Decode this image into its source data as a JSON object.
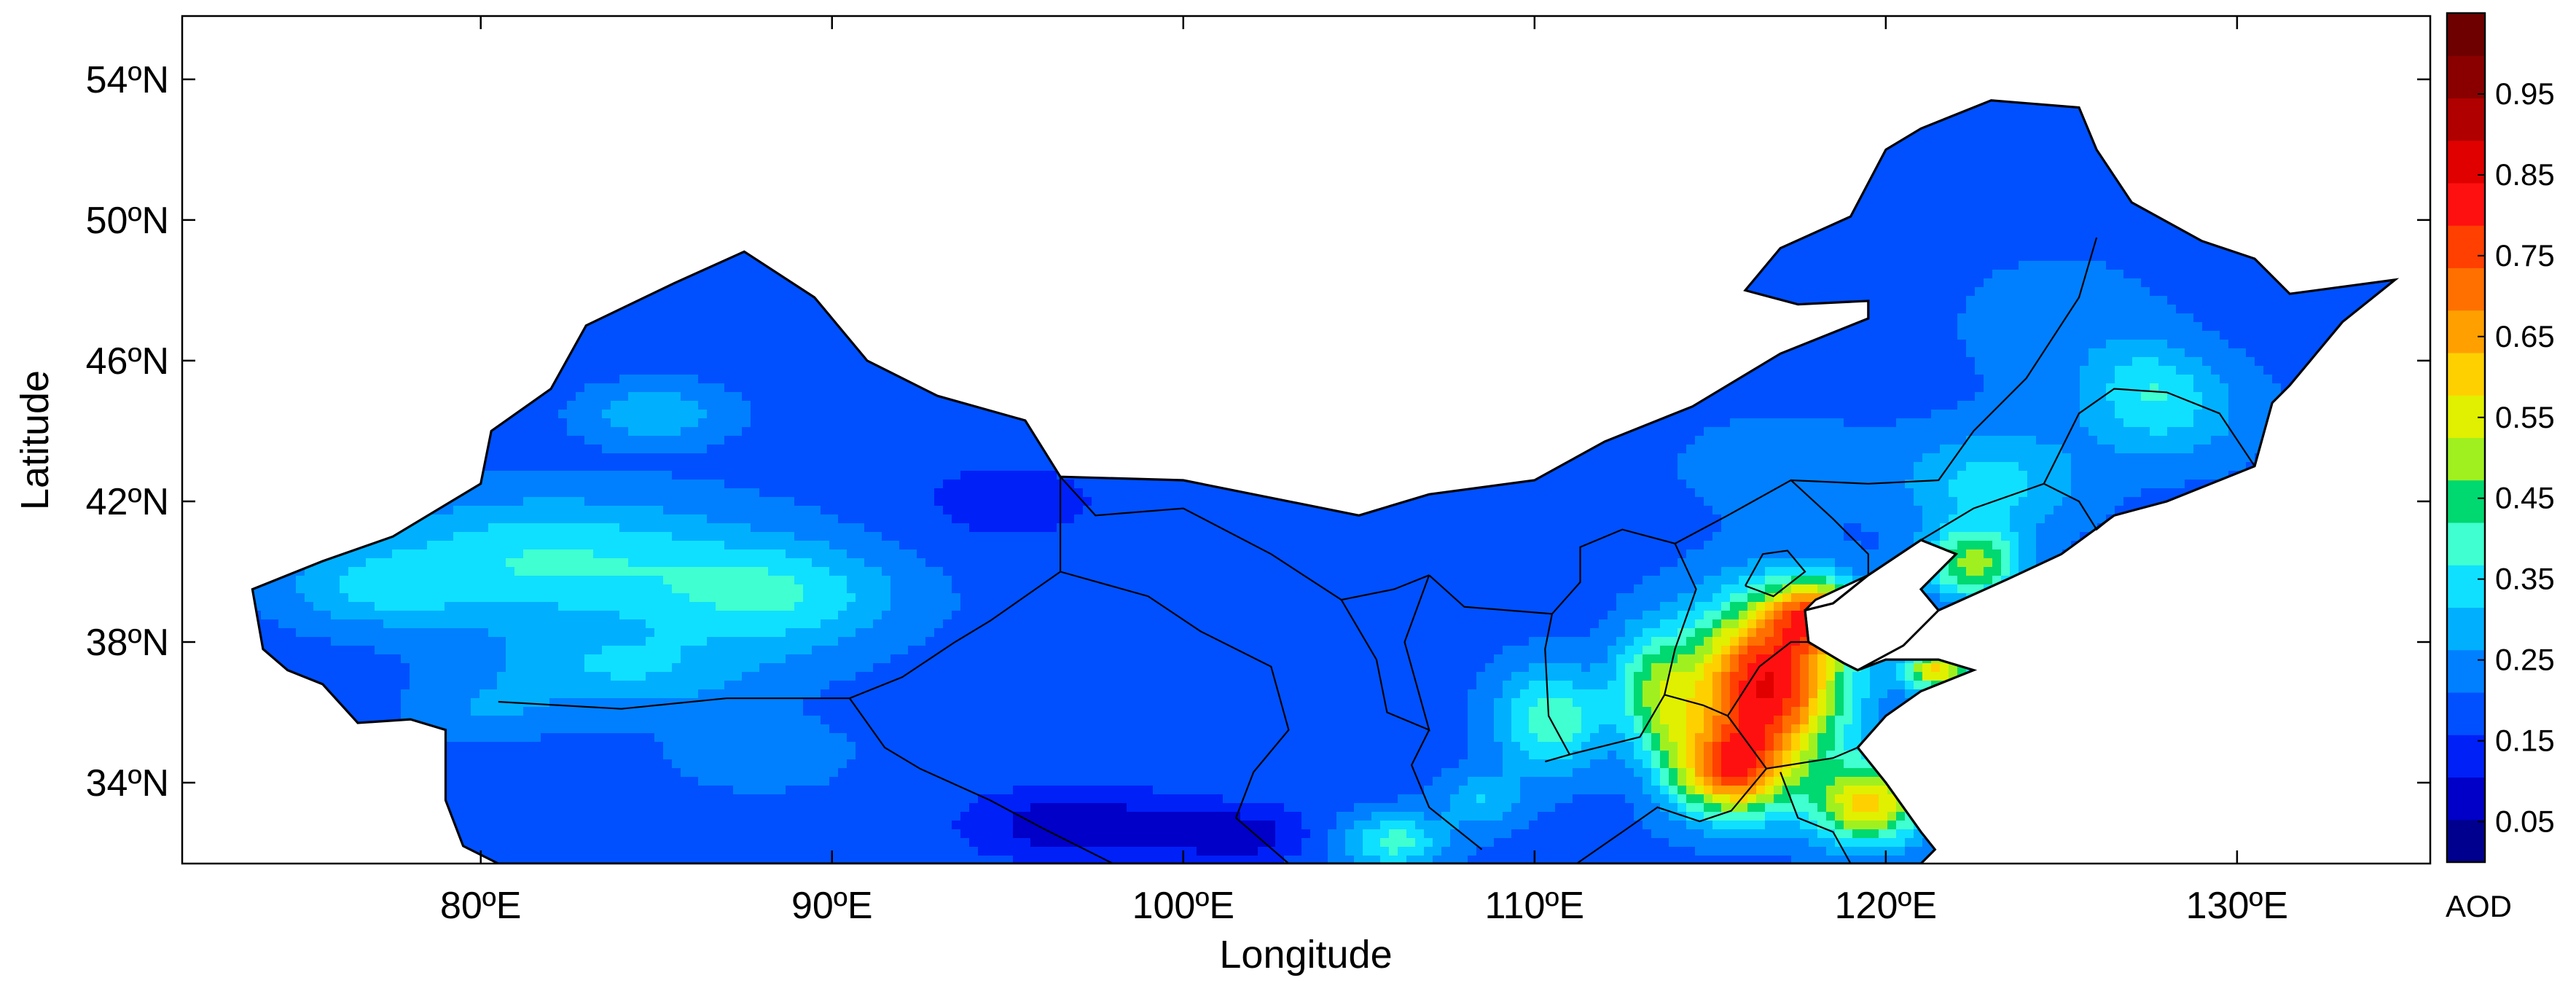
{
  "map": {
    "xlabel": "Longitude",
    "ylabel": "Latitude",
    "lon_range": [
      71.5,
      135.5
    ],
    "lat_range": [
      31.7,
      55.8
    ],
    "x_ticks": [
      {
        "value": 80,
        "label": "80ºE"
      },
      {
        "value": 90,
        "label": "90ºE"
      },
      {
        "value": 100,
        "label": "100ºE"
      },
      {
        "value": 110,
        "label": "110ºE"
      },
      {
        "value": 120,
        "label": "120ºE"
      },
      {
        "value": 130,
        "label": "130ºE"
      }
    ],
    "y_ticks": [
      {
        "value": 34,
        "label": "34ºN"
      },
      {
        "value": 38,
        "label": "38ºN"
      },
      {
        "value": 42,
        "label": "42ºN"
      },
      {
        "value": 46,
        "label": "46ºN"
      },
      {
        "value": 50,
        "label": "50ºN"
      },
      {
        "value": 54,
        "label": "54ºN"
      }
    ],
    "outline": [
      [
        73.5,
        39.5
      ],
      [
        75.5,
        40.3
      ],
      [
        77.5,
        41.0
      ],
      [
        80.0,
        42.5
      ],
      [
        80.3,
        44.0
      ],
      [
        82.0,
        45.2
      ],
      [
        83.0,
        47.0
      ],
      [
        85.5,
        48.2
      ],
      [
        87.5,
        49.1
      ],
      [
        89.5,
        47.8
      ],
      [
        91.0,
        46.0
      ],
      [
        93.0,
        45.0
      ],
      [
        95.5,
        44.3
      ],
      [
        96.5,
        42.7
      ],
      [
        100.0,
        42.6
      ],
      [
        105.0,
        41.6
      ],
      [
        107.0,
        42.2
      ],
      [
        110.0,
        42.6
      ],
      [
        112.0,
        43.7
      ],
      [
        114.5,
        44.7
      ],
      [
        117.0,
        46.2
      ],
      [
        119.5,
        47.2
      ],
      [
        119.5,
        47.7
      ],
      [
        117.5,
        47.6
      ],
      [
        116.0,
        48.0
      ],
      [
        117.0,
        49.2
      ],
      [
        119.0,
        50.1
      ],
      [
        120.0,
        52.0
      ],
      [
        121.0,
        52.6
      ],
      [
        123.0,
        53.4
      ],
      [
        125.5,
        53.2
      ],
      [
        126.0,
        52.0
      ],
      [
        127.0,
        50.5
      ],
      [
        129.0,
        49.4
      ],
      [
        130.5,
        48.9
      ],
      [
        131.5,
        47.9
      ],
      [
        134.5,
        48.3
      ],
      [
        133.0,
        47.1
      ],
      [
        131.5,
        45.3
      ],
      [
        131.0,
        44.8
      ],
      [
        130.5,
        43.0
      ],
      [
        129.5,
        42.6
      ],
      [
        128.0,
        42.0
      ],
      [
        126.5,
        41.6
      ],
      [
        125.0,
        40.5
      ],
      [
        123.5,
        39.8
      ],
      [
        121.5,
        38.9
      ],
      [
        121.0,
        39.5
      ],
      [
        122.0,
        40.5
      ],
      [
        121.0,
        40.9
      ],
      [
        119.5,
        39.9
      ],
      [
        118.5,
        39.1
      ],
      [
        117.7,
        38.9
      ],
      [
        117.8,
        38.0
      ],
      [
        118.8,
        37.4
      ],
      [
        119.2,
        37.2
      ],
      [
        120.0,
        37.5
      ],
      [
        121.5,
        37.5
      ],
      [
        122.5,
        37.2
      ],
      [
        121.0,
        36.6
      ],
      [
        120.0,
        35.9
      ],
      [
        119.2,
        35.0
      ],
      [
        120.0,
        34.0
      ],
      [
        121.0,
        32.6
      ],
      [
        121.4,
        32.1
      ],
      [
        121.0,
        31.7
      ],
      [
        103.0,
        31.7
      ],
      [
        98.0,
        31.7
      ],
      [
        95.0,
        31.7
      ],
      [
        90.0,
        31.7
      ],
      [
        86.0,
        31.7
      ],
      [
        80.5,
        31.7
      ],
      [
        79.5,
        32.2
      ],
      [
        79.0,
        33.5
      ],
      [
        79.0,
        35.5
      ],
      [
        78.0,
        35.8
      ],
      [
        76.5,
        35.7
      ],
      [
        75.5,
        36.8
      ],
      [
        74.5,
        37.2
      ],
      [
        73.8,
        37.8
      ],
      [
        73.5,
        39.5
      ]
    ],
    "bohai_sea": [
      [
        118.0,
        39.2
      ],
      [
        119.5,
        39.9
      ],
      [
        121.0,
        40.9
      ],
      [
        122.0,
        40.5
      ],
      [
        121.0,
        39.5
      ],
      [
        121.5,
        38.9
      ],
      [
        120.5,
        37.9
      ],
      [
        119.2,
        37.2
      ],
      [
        118.8,
        37.4
      ],
      [
        117.8,
        38.0
      ],
      [
        117.7,
        38.9
      ],
      [
        118.0,
        39.2
      ]
    ],
    "provincial_borders": [
      [
        [
          80.5,
          36.3
        ],
        [
          84.0,
          36.1
        ],
        [
          87.0,
          36.4
        ],
        [
          90.5,
          36.4
        ],
        [
          92.0,
          37.0
        ],
        [
          93.5,
          38.0
        ],
        [
          94.5,
          38.6
        ],
        [
          96.5,
          40.0
        ],
        [
          96.5,
          42.7
        ]
      ],
      [
        [
          90.5,
          36.4
        ],
        [
          91.5,
          35.0
        ],
        [
          92.5,
          34.4
        ],
        [
          94.5,
          33.5
        ],
        [
          96.0,
          32.7
        ],
        [
          98.0,
          31.7
        ]
      ],
      [
        [
          96.5,
          40.0
        ],
        [
          99.0,
          39.3
        ],
        [
          100.5,
          38.3
        ],
        [
          102.5,
          37.3
        ],
        [
          103.0,
          35.5
        ],
        [
          102.0,
          34.3
        ],
        [
          101.5,
          33.0
        ],
        [
          103.0,
          31.7
        ]
      ],
      [
        [
          96.5,
          42.7
        ],
        [
          97.5,
          41.6
        ],
        [
          100.0,
          41.8
        ],
        [
          102.5,
          40.5
        ],
        [
          104.5,
          39.2
        ],
        [
          106.0,
          39.5
        ],
        [
          107.0,
          39.9
        ]
      ],
      [
        [
          104.5,
          39.2
        ],
        [
          105.5,
          37.5
        ],
        [
          105.8,
          36.0
        ],
        [
          107.0,
          35.5
        ],
        [
          106.3,
          38.0
        ],
        [
          107.0,
          39.9
        ]
      ],
      [
        [
          107.0,
          35.5
        ],
        [
          106.5,
          34.5
        ],
        [
          107.0,
          33.3
        ],
        [
          108.5,
          32.1
        ]
      ],
      [
        [
          107.0,
          39.9
        ],
        [
          108.0,
          39.0
        ],
        [
          110.5,
          38.8
        ],
        [
          111.3,
          39.7
        ],
        [
          111.3,
          40.7
        ],
        [
          112.5,
          41.2
        ],
        [
          114.0,
          40.8
        ],
        [
          114.6,
          39.5
        ],
        [
          114.0,
          37.8
        ],
        [
          113.7,
          36.5
        ]
      ],
      [
        [
          111.0,
          34.8
        ],
        [
          110.4,
          35.9
        ],
        [
          110.3,
          37.8
        ],
        [
          110.5,
          38.8
        ]
      ],
      [
        [
          110.3,
          34.6
        ],
        [
          111.0,
          34.8
        ],
        [
          113.0,
          35.3
        ],
        [
          113.7,
          36.5
        ],
        [
          114.8,
          36.2
        ],
        [
          115.5,
          35.9
        ]
      ],
      [
        [
          111.2,
          31.7
        ],
        [
          112.5,
          32.6
        ],
        [
          113.5,
          33.3
        ],
        [
          114.7,
          32.9
        ],
        [
          115.6,
          33.2
        ],
        [
          116.6,
          34.4
        ],
        [
          115.5,
          35.9
        ]
      ],
      [
        [
          114.0,
          40.8
        ],
        [
          115.5,
          41.6
        ],
        [
          117.3,
          42.6
        ],
        [
          118.5,
          41.5
        ],
        [
          119.5,
          40.5
        ],
        [
          119.5,
          39.9
        ]
      ],
      [
        [
          115.5,
          35.9
        ],
        [
          116.4,
          37.3
        ],
        [
          117.3,
          38.0
        ],
        [
          117.8,
          38.0
        ]
      ],
      [
        [
          116.6,
          34.4
        ],
        [
          118.5,
          34.7
        ],
        [
          119.2,
          35.0
        ]
      ],
      [
        [
          117.0,
          34.3
        ],
        [
          117.5,
          33.0
        ],
        [
          118.5,
          32.6
        ],
        [
          119.0,
          31.7
        ]
      ],
      [
        [
          116.0,
          39.6
        ],
        [
          116.5,
          40.5
        ],
        [
          117.2,
          40.6
        ],
        [
          117.7,
          40.0
        ],
        [
          116.8,
          39.3
        ],
        [
          116.0,
          39.6
        ]
      ],
      [
        [
          117.3,
          42.6
        ],
        [
          119.5,
          42.5
        ],
        [
          121.5,
          42.6
        ],
        [
          122.5,
          44.0
        ],
        [
          124.0,
          45.5
        ],
        [
          125.5,
          47.8
        ],
        [
          126.0,
          49.5
        ]
      ],
      [
        [
          121.0,
          40.9
        ],
        [
          122.5,
          41.8
        ],
        [
          124.5,
          42.5
        ],
        [
          125.5,
          42.0
        ],
        [
          126.0,
          41.2
        ],
        [
          126.5,
          41.6
        ]
      ],
      [
        [
          124.5,
          42.5
        ],
        [
          125.5,
          44.5
        ],
        [
          126.5,
          45.2
        ],
        [
          128.0,
          45.1
        ],
        [
          129.5,
          44.5
        ],
        [
          130.5,
          43.0
        ]
      ]
    ]
  },
  "aod_field": {
    "base": 0.19,
    "components": [
      [
        82.0,
        40.3,
        5.5,
        1.8,
        0.18
      ],
      [
        88.5,
        39.3,
        3.5,
        1.5,
        0.16
      ],
      [
        84.0,
        37.2,
        4.0,
        1.2,
        0.12
      ],
      [
        77.0,
        39.5,
        2.5,
        1.0,
        0.1
      ],
      [
        85.0,
        44.5,
        2.0,
        0.8,
        0.12
      ],
      [
        80.0,
        36.0,
        2.0,
        0.8,
        0.06
      ],
      [
        88.0,
        34.8,
        2.5,
        1.0,
        0.06
      ],
      [
        97.0,
        32.8,
        3.0,
        1.0,
        -0.13
      ],
      [
        101.5,
        32.5,
        2.0,
        0.8,
        -0.12
      ],
      [
        95.0,
        42.0,
        3.5,
        1.5,
        -0.05
      ],
      [
        110.5,
        35.8,
        1.6,
        1.5,
        0.22
      ],
      [
        106.0,
        32.3,
        1.5,
        0.8,
        0.2
      ],
      [
        108.5,
        33.5,
        1.2,
        0.8,
        0.12
      ],
      [
        113.0,
        37.0,
        1.0,
        1.6,
        0.12
      ],
      [
        113.8,
        36.0,
        1.0,
        2.0,
        0.18
      ],
      [
        116.6,
        36.8,
        2.2,
        2.3,
        0.65
      ],
      [
        115.6,
        34.3,
        1.5,
        1.3,
        0.45
      ],
      [
        119.5,
        33.4,
        1.6,
        1.2,
        0.4
      ],
      [
        118.0,
        38.8,
        1.3,
        1.0,
        0.4
      ],
      [
        121.5,
        37.2,
        1.0,
        0.6,
        0.4
      ],
      [
        122.5,
        40.2,
        1.4,
        1.0,
        0.3
      ],
      [
        123.0,
        42.5,
        2.5,
        1.5,
        0.15
      ],
      [
        128.0,
        44.5,
        2.5,
        1.5,
        0.12
      ],
      [
        125.0,
        47.0,
        3.0,
        2.0,
        0.05
      ],
      [
        127.5,
        45.5,
        1.5,
        1.2,
        0.08
      ],
      [
        117.0,
        43.0,
        3.0,
        1.5,
        0.05
      ]
    ]
  },
  "colorbar": {
    "unit": "AOD",
    "vmin": 0,
    "vmax": 1.05,
    "colors": [
      "#00008f",
      "#0000c8",
      "#0020f8",
      "#0050ff",
      "#0080ff",
      "#00b0ff",
      "#10e0ff",
      "#40ffd0",
      "#00d870",
      "#a0f020",
      "#e0f000",
      "#ffd000",
      "#ffa000",
      "#ff7000",
      "#ff4000",
      "#ff1010",
      "#e00000",
      "#b00000",
      "#8a0000",
      "#6e0000"
    ],
    "ticks": [
      {
        "value": 0.05,
        "label": "0.05"
      },
      {
        "value": 0.15,
        "label": "0.15"
      },
      {
        "value": 0.25,
        "label": "0.25"
      },
      {
        "value": 0.35,
        "label": "0.35"
      },
      {
        "value": 0.45,
        "label": "0.45"
      },
      {
        "value": 0.55,
        "label": "0.55"
      },
      {
        "value": 0.65,
        "label": "0.65"
      },
      {
        "value": 0.75,
        "label": "0.75"
      },
      {
        "value": 0.85,
        "label": "0.85"
      },
      {
        "value": 0.95,
        "label": "0.95"
      }
    ]
  }
}
